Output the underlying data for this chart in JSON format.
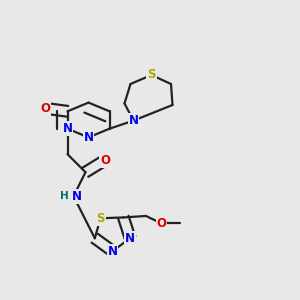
{
  "bg_color": "#e8e8e8",
  "bond_color": "#222222",
  "bond_width": 1.6,
  "dbo": 0.018,
  "atom_colors": {
    "N": "#0000ee",
    "O": "#dd0000",
    "S": "#aaaa00",
    "H": "#007070",
    "C": "#222222"
  },
  "fs": 8.5
}
